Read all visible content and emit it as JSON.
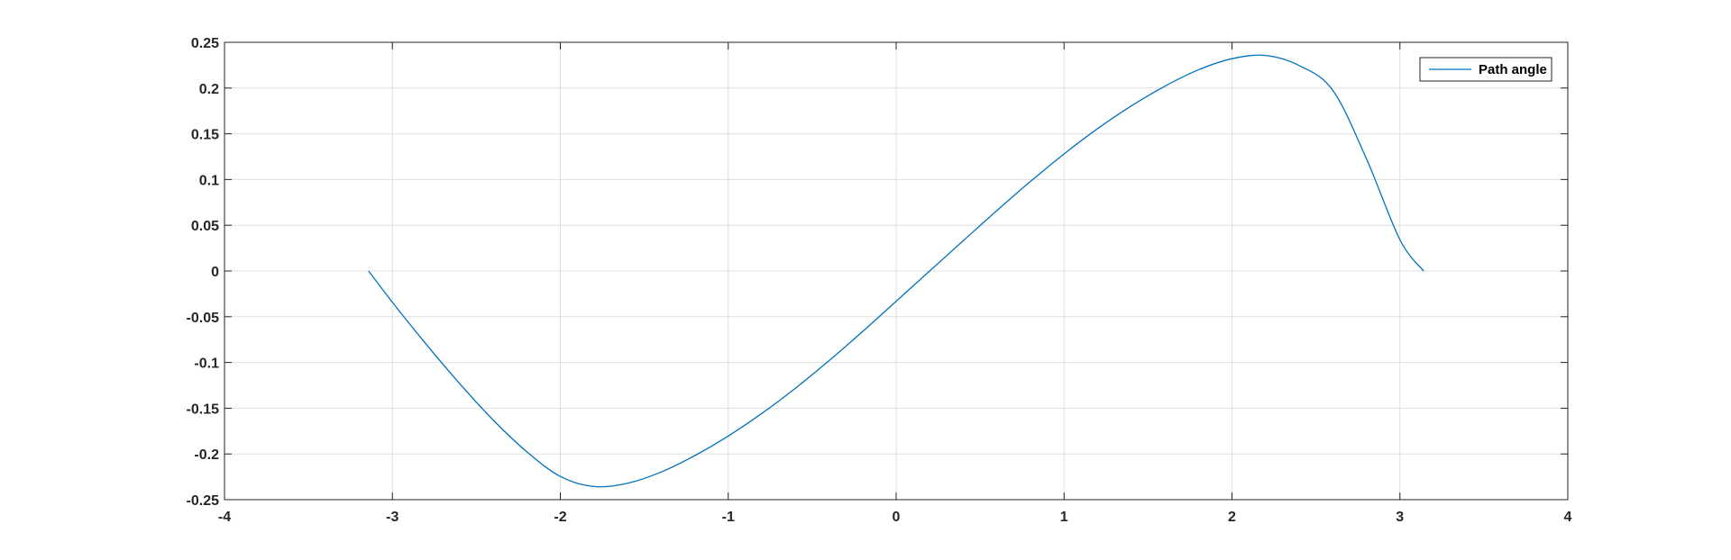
{
  "chart_data": {
    "type": "line",
    "title": "",
    "xlabel": "",
    "ylabel": "",
    "xlim": [
      -4,
      4
    ],
    "ylim": [
      -0.25,
      0.25
    ],
    "grid": true,
    "legend_position": "top-right",
    "x_ticks": [
      -4,
      -3,
      -2,
      -1,
      0,
      1,
      2,
      3,
      4
    ],
    "x_tick_labels": [
      "-4",
      "-3",
      "-2",
      "-1",
      "0",
      "1",
      "2",
      "3",
      "4"
    ],
    "y_ticks": [
      -0.25,
      -0.2,
      -0.15,
      -0.1,
      -0.05,
      0,
      0.05,
      0.1,
      0.15,
      0.2,
      0.25
    ],
    "y_tick_labels": [
      "-0.25",
      "-0.2",
      "-0.15",
      "-0.1",
      "-0.05",
      "0",
      "0.05",
      "0.1",
      "0.15",
      "0.2",
      "0.25"
    ],
    "series": [
      {
        "name": "Path angle",
        "color": "#0072BD",
        "x": [
          -3.1416,
          -3.0,
          -2.8,
          -2.6,
          -2.4,
          -2.2,
          -2.0,
          -1.8,
          -1.6,
          -1.4,
          -1.2,
          -1.0,
          -0.8,
          -0.6,
          -0.4,
          -0.2,
          0.0,
          0.2,
          0.4,
          0.6,
          0.8,
          1.0,
          1.2,
          1.4,
          1.6,
          1.8,
          2.0,
          2.2,
          2.4,
          2.6,
          2.8,
          3.0,
          3.1416
        ],
        "y": [
          0.0,
          -0.0342,
          -0.0798,
          -0.123,
          -0.1629,
          -0.1976,
          -0.2246,
          -0.2356,
          -0.232,
          -0.2198,
          -0.2019,
          -0.1804,
          -0.1557,
          -0.1282,
          -0.0981,
          -0.0662,
          -0.0331,
          0.0001,
          0.0332,
          0.0661,
          0.0979,
          0.128,
          0.1557,
          0.1804,
          0.202,
          0.2199,
          0.2321,
          0.2356,
          0.2246,
          0.1976,
          0.123,
          0.0342,
          0.0
        ]
      }
    ]
  },
  "colors": {
    "axes": "#262626",
    "grid": "#dfdfdf",
    "line": "#0072BD"
  }
}
